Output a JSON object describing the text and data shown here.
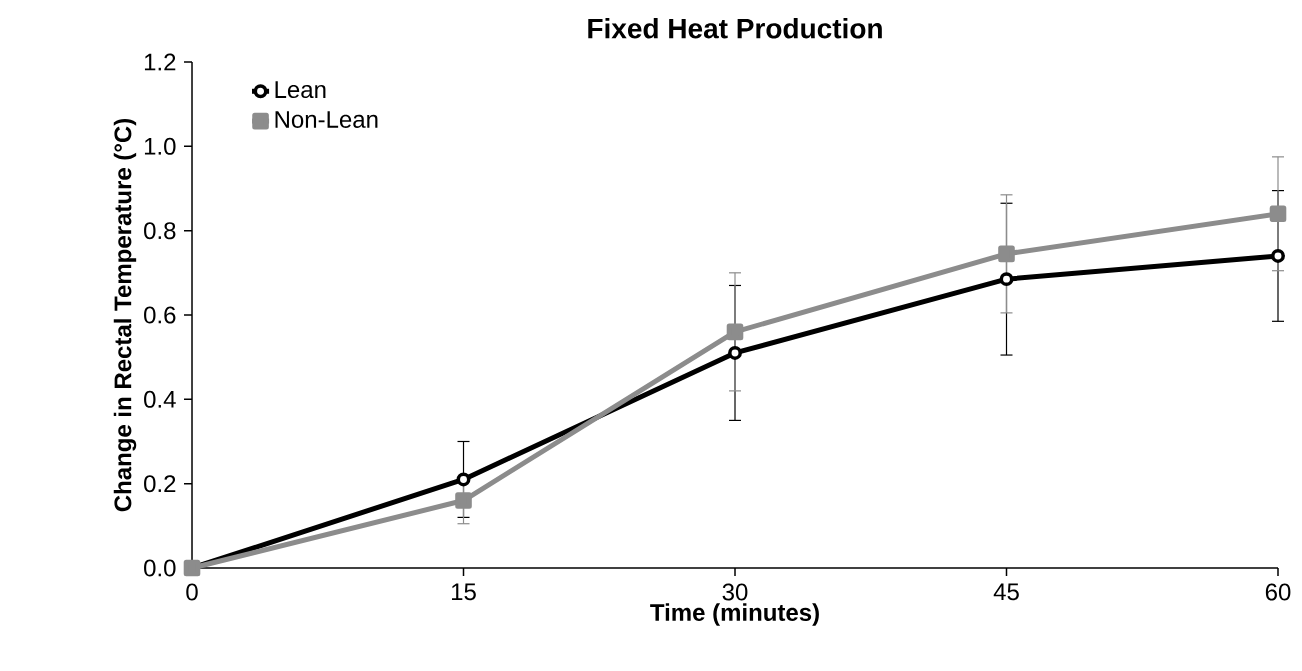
{
  "chart_data": {
    "type": "line",
    "title": "Fixed Heat Production",
    "xlabel": "Time (minutes)",
    "ylabel": "Change in Rectal Temperature (°C)",
    "x": [
      0,
      15,
      30,
      45,
      60
    ],
    "series": [
      {
        "name": "Lean",
        "color": "#000000",
        "marker": "circle",
        "values": [
          0,
          0.21,
          0.51,
          0.685,
          0.74
        ],
        "errors": [
          null,
          0.09,
          0.16,
          0.18,
          0.155
        ]
      },
      {
        "name": "Non-Lean",
        "color": "#8c8c8c",
        "marker": "square",
        "values": [
          0,
          0.16,
          0.56,
          0.745,
          0.84
        ],
        "errors": [
          null,
          0.055,
          0.14,
          0.14,
          0.135
        ]
      }
    ],
    "xlim": [
      0,
      60
    ],
    "ylim": [
      0,
      1.2
    ],
    "xticks": [
      0,
      15,
      30,
      45,
      60
    ],
    "yticks": [
      {
        "value": 0,
        "label": "0.0"
      },
      {
        "value": 0.2,
        "label": "0.2"
      },
      {
        "value": 0.4,
        "label": "0.4"
      },
      {
        "value": 0.6,
        "label": "0.6"
      },
      {
        "value": 0.8,
        "label": "0.8"
      },
      {
        "value": 1.0,
        "label": "1.0"
      },
      {
        "value": 1.2,
        "label": "1.2"
      }
    ],
    "legend": "top left",
    "grid": false
  }
}
